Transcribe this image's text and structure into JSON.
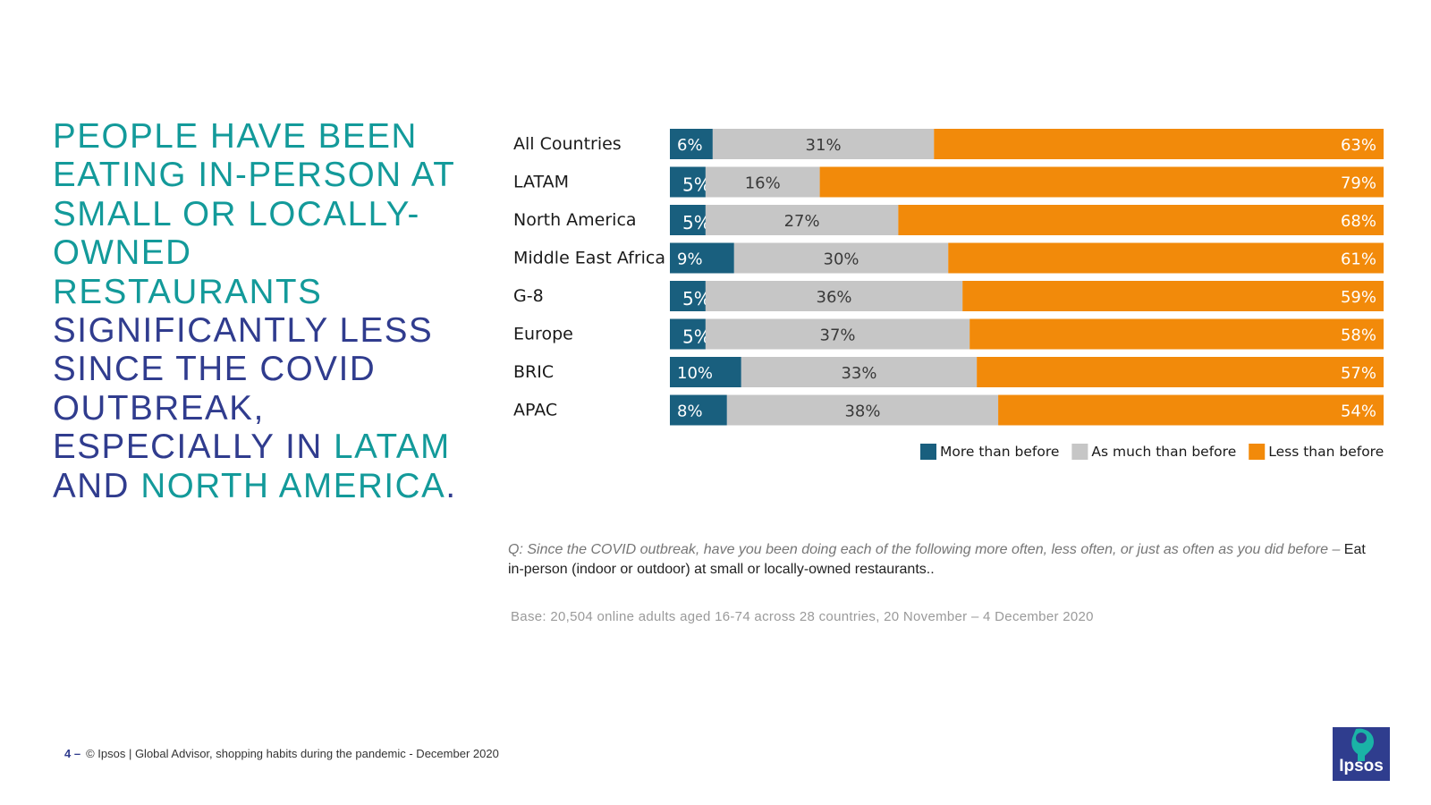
{
  "headline": {
    "parts": [
      {
        "text": "PEOPLE HAVE BEEN EATING IN-PERSON AT SMALL OR LOCALLY-OWNED RESTAURANTS ",
        "color": "#139a9a"
      },
      {
        "text": "SIGNIFICANTLY LESS SINCE THE COVID OUTBREAK, ESPECIALLY IN ",
        "color": "#303c8e"
      },
      {
        "text": "LATAM",
        "color": "#139a9a"
      },
      {
        "text": " AND ",
        "color": "#303c8e"
      },
      {
        "text": "NORTH AMERICA",
        "color": "#139a9a"
      },
      {
        "text": ".",
        "color": "#303c8e"
      }
    ]
  },
  "chart_data": {
    "type": "bar",
    "orientation": "horizontal",
    "stacked": true,
    "categories": [
      "All Countries",
      "LATAM",
      "North America",
      "Middle East Africa",
      "G-8",
      "Europe",
      "BRIC",
      "APAC"
    ],
    "series": [
      {
        "name": "More than before",
        "color": "#195f7e",
        "values": [
          6,
          5,
          5,
          9,
          5,
          5,
          10,
          8
        ]
      },
      {
        "name": "As much than before",
        "color": "#c6c6c6",
        "values": [
          31,
          16,
          27,
          30,
          36,
          37,
          33,
          38
        ]
      },
      {
        "name": "Less than before",
        "color": "#f28a0a",
        "values": [
          63,
          79,
          68,
          61,
          59,
          58,
          57,
          54
        ]
      }
    ],
    "value_suffix": "%",
    "xlim": [
      0,
      100
    ],
    "grid": false,
    "legend": "bottom-right"
  },
  "question": {
    "prefix": "Q: Since the COVID outbreak, have you been doing each of the following more often, less often, or just as often as you did before – ",
    "item": "Eat in-person (indoor or outdoor) at small or locally-owned restaurants.."
  },
  "base": "Base: 20,504 online adults aged 16-74 across 28 countries,  20 November – 4 December 2020",
  "footer": {
    "page": "4 –",
    "text": "© Ipsos |  Global Advisor, shopping habits during the pandemic - December 2020"
  },
  "logo": {
    "text": "Ipsos",
    "icon": "ipsos-logo-icon",
    "colors": {
      "background": "#2f3d8e",
      "accent": "#1ab3a6"
    }
  }
}
